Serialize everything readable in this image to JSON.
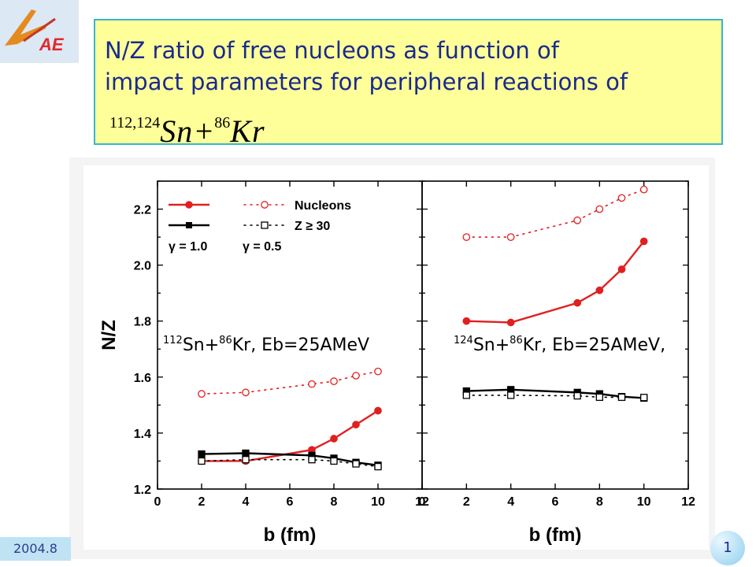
{
  "slide": {
    "title": "N/Z ratio of free nucleons  as function of\nimpact parameters for peripheral  reactions of",
    "formula": {
      "mass_prefix": "112,124",
      "projectile": "Sn",
      "plus": "+",
      "target_mass": "86",
      "target": "Kr"
    },
    "footer_date": "2004.8",
    "page_number": "1"
  },
  "colors": {
    "red": "#e02020",
    "black": "#000000",
    "title_bg": "#ffff99",
    "title_border": "#33b5d6",
    "title_text": "#1a2a8c"
  },
  "chart_data": [
    {
      "type": "line",
      "panel": "left",
      "annotation": {
        "a1": "112",
        "s": "Sn+",
        "a2": "86",
        "t": "Kr,  Eb=25AMeV"
      },
      "xlabel": "b (fm)",
      "ylabel": "N/Z",
      "xlim": [
        0,
        12
      ],
      "ylim": [
        1.2,
        2.3
      ],
      "xticks": [
        "0",
        "2",
        "4",
        "6",
        "8",
        "10",
        "12"
      ],
      "yticks": [
        "1.2",
        "1.4",
        "1.6",
        "1.8",
        "2.0",
        "2.2"
      ],
      "legend": {
        "nucleons": "Nucleons",
        "fragments": "Z ≥ 30",
        "gamma_solid": "γ = 1.0",
        "gamma_open": "γ = 0.5"
      },
      "series": [
        {
          "name": "Nucleons, γ = 1.0",
          "color": "#e02020",
          "marker": "filled-circle",
          "line": "solid",
          "x": [
            2,
            4,
            7,
            8,
            9,
            10
          ],
          "y": [
            1.3,
            1.3,
            1.34,
            1.38,
            1.43,
            1.48
          ]
        },
        {
          "name": "Nucleons, γ = 0.5",
          "color": "#e02020",
          "marker": "open-circle",
          "line": "dotted",
          "x": [
            2,
            4,
            7,
            8,
            9,
            10
          ],
          "y": [
            1.54,
            1.545,
            1.575,
            1.585,
            1.605,
            1.62
          ]
        },
        {
          "name": "Z ≥ 30, γ = 1.0",
          "color": "#000000",
          "marker": "filled-square",
          "line": "solid",
          "x": [
            2,
            4,
            7,
            8,
            9,
            10
          ],
          "y": [
            1.325,
            1.328,
            1.32,
            1.31,
            1.295,
            1.285
          ]
        },
        {
          "name": "Z ≥ 30, γ = 0.5",
          "color": "#000000",
          "marker": "open-square",
          "line": "dotted",
          "x": [
            2,
            4,
            7,
            8,
            9,
            10
          ],
          "y": [
            1.3,
            1.305,
            1.305,
            1.3,
            1.29,
            1.28
          ]
        }
      ]
    },
    {
      "type": "line",
      "panel": "right",
      "annotation": {
        "a1": "124",
        "s": "Sn+",
        "a2": "86",
        "t": "Kr, Eb=25AMeV,"
      },
      "xlabel": "b (fm)",
      "xlim": [
        0,
        12
      ],
      "ylim": [
        1.2,
        2.3
      ],
      "xticks": [
        "0",
        "2",
        "4",
        "6",
        "8",
        "10",
        "12"
      ],
      "series": [
        {
          "name": "Nucleons, γ = 1.0",
          "color": "#e02020",
          "marker": "filled-circle",
          "line": "solid",
          "x": [
            2,
            4,
            7,
            8,
            9,
            10
          ],
          "y": [
            1.8,
            1.795,
            1.865,
            1.91,
            1.985,
            2.085
          ]
        },
        {
          "name": "Nucleons, γ = 0.5",
          "color": "#e02020",
          "marker": "open-circle",
          "line": "dotted",
          "x": [
            2,
            4,
            7,
            8,
            9,
            10
          ],
          "y": [
            2.1,
            2.1,
            2.16,
            2.2,
            2.24,
            2.27
          ]
        },
        {
          "name": "Z ≥ 30, γ = 1.0",
          "color": "#000000",
          "marker": "filled-square",
          "line": "solid",
          "x": [
            2,
            4,
            7,
            8,
            9,
            10
          ],
          "y": [
            1.55,
            1.555,
            1.545,
            1.54,
            1.53,
            1.525
          ]
        },
        {
          "name": "Z ≥ 30, γ = 0.5",
          "color": "#000000",
          "marker": "open-square",
          "line": "dotted",
          "x": [
            2,
            4,
            7,
            8,
            9,
            10
          ],
          "y": [
            1.535,
            1.535,
            1.533,
            1.528,
            1.528,
            1.527
          ]
        }
      ]
    }
  ]
}
